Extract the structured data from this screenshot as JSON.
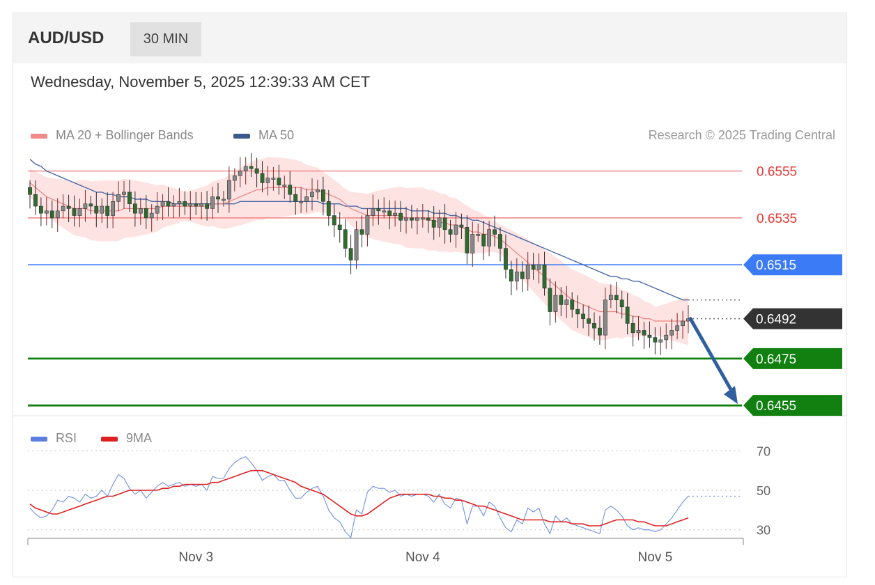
{
  "header": {
    "pair": "AUD/USD",
    "timeframe": "30 MIN",
    "timestamp": "Wednesday, November 5, 2025 12:39:33 AM CET"
  },
  "legend": {
    "ma20_label": "MA 20 + Bollinger Bands",
    "ma50_label": "MA 50",
    "credit": "Research © 2025 Trading Central",
    "rsi_label": "RSI",
    "rsi_ma_label": "9MA"
  },
  "colors": {
    "resistance": "#f08080",
    "resistance_text": "#e53935",
    "pivot": "#3b7bf6",
    "current": "#333333",
    "support": "#118011",
    "ma20": "#e8837e",
    "ma50": "#4a6aa8",
    "band_fill": "#fde0df",
    "candle_up": "#888888",
    "candle_down": "#2e6b2e",
    "arrow": "#2f5f9f",
    "rsi": "#6f8fe0",
    "rsi_ma": "#e02020"
  },
  "chart_data": [
    {
      "type": "candlestick",
      "title": "",
      "ylim": [
        0.645,
        0.6562
      ],
      "levels": [
        {
          "kind": "resistance",
          "value": 0.6555,
          "label": "0.6555"
        },
        {
          "kind": "resistance",
          "value": 0.6535,
          "label": "0.6535"
        },
        {
          "kind": "pivot",
          "value": 0.6515,
          "label": "0.6515"
        },
        {
          "kind": "current",
          "value": 0.6492,
          "label": "0.6492"
        },
        {
          "kind": "support",
          "value": 0.6475,
          "label": "0.6475"
        },
        {
          "kind": "support",
          "value": 0.6455,
          "label": "0.6455"
        }
      ],
      "forecast_arrow": {
        "from": 0.6492,
        "to": 0.6455,
        "direction": "down"
      },
      "close": [
        0.6545,
        0.654,
        0.6537,
        0.6538,
        0.6535,
        0.6538,
        0.654,
        0.6539,
        0.6536,
        0.6539,
        0.6541,
        0.654,
        0.6537,
        0.654,
        0.6536,
        0.6542,
        0.6545,
        0.6546,
        0.6541,
        0.6537,
        0.6539,
        0.6535,
        0.6537,
        0.654,
        0.6542,
        0.654,
        0.6541,
        0.6542,
        0.654,
        0.6541,
        0.654,
        0.6541,
        0.6539,
        0.6544,
        0.6543,
        0.6543,
        0.6551,
        0.6553,
        0.6555,
        0.6557,
        0.6556,
        0.6554,
        0.655,
        0.6552,
        0.6552,
        0.6549,
        0.6549,
        0.6545,
        0.6542,
        0.6542,
        0.6544,
        0.6546,
        0.6547,
        0.6542,
        0.6536,
        0.6532,
        0.653,
        0.6522,
        0.6517,
        0.653,
        0.6528,
        0.6536,
        0.6539,
        0.6538,
        0.6538,
        0.6536,
        0.6537,
        0.6534,
        0.6535,
        0.6534,
        0.6535,
        0.6535,
        0.6534,
        0.6531,
        0.6535,
        0.653,
        0.6528,
        0.6532,
        0.6531,
        0.652,
        0.6528,
        0.6528,
        0.6523,
        0.653,
        0.6528,
        0.6522,
        0.6513,
        0.6508,
        0.6512,
        0.6509,
        0.6515,
        0.6513,
        0.6515,
        0.6505,
        0.6495,
        0.6502,
        0.6498,
        0.65,
        0.6496,
        0.6494,
        0.6492,
        0.649,
        0.6488,
        0.6485,
        0.65,
        0.6502,
        0.65,
        0.6497,
        0.649,
        0.6486,
        0.6487,
        0.6485,
        0.6484,
        0.6482,
        0.6483,
        0.6485,
        0.6487,
        0.6489,
        0.6491,
        0.6492
      ],
      "ma50": [
        0.656,
        0.6558,
        0.6557,
        0.6555,
        0.6554,
        0.6553,
        0.6552,
        0.6551,
        0.655,
        0.6549,
        0.6548,
        0.6547,
        0.6546,
        0.6546,
        0.6545,
        0.6545,
        0.6544,
        0.6544,
        0.6544,
        0.6543,
        0.6543,
        0.6543,
        0.6542,
        0.6542,
        0.6542,
        0.6542,
        0.6541,
        0.6541,
        0.6541,
        0.6541,
        0.6541,
        0.6541,
        0.6541,
        0.6541,
        0.6541,
        0.6541,
        0.6541,
        0.6541,
        0.6542,
        0.6542,
        0.6542,
        0.6542,
        0.6542,
        0.6542,
        0.6542,
        0.6542,
        0.6542,
        0.6542,
        0.6542,
        0.6542,
        0.6542,
        0.6542,
        0.6542,
        0.6541,
        0.6541,
        0.6541,
        0.6541,
        0.654,
        0.654,
        0.654,
        0.6539,
        0.6539,
        0.6539,
        0.6539,
        0.6539,
        0.6539,
        0.6539,
        0.6539,
        0.6539,
        0.6538,
        0.6538,
        0.6538,
        0.6538,
        0.6537,
        0.6537,
        0.6537,
        0.6536,
        0.6536,
        0.6535,
        0.6535,
        0.6534,
        0.6534,
        0.6533,
        0.6532,
        0.6531,
        0.653,
        0.6529,
        0.6528,
        0.6527,
        0.6526,
        0.6525,
        0.6524,
        0.6523,
        0.6522,
        0.6521,
        0.652,
        0.6519,
        0.6518,
        0.6517,
        0.6516,
        0.6515,
        0.6514,
        0.6513,
        0.6512,
        0.6511,
        0.651,
        0.651,
        0.6509,
        0.6509,
        0.6508,
        0.6508,
        0.6507,
        0.6506,
        0.6505,
        0.6504,
        0.6503,
        0.6502,
        0.6501,
        0.65,
        0.65
      ],
      "ma20": [
        0.655,
        0.6548,
        0.6546,
        0.6544,
        0.6543,
        0.6542,
        0.6541,
        0.654,
        0.6539,
        0.6539,
        0.6539,
        0.6538,
        0.6538,
        0.6538,
        0.6538,
        0.6538,
        0.6538,
        0.6539,
        0.6539,
        0.6539,
        0.6539,
        0.6539,
        0.6539,
        0.6539,
        0.654,
        0.654,
        0.654,
        0.654,
        0.654,
        0.654,
        0.654,
        0.654,
        0.654,
        0.6541,
        0.6541,
        0.6541,
        0.6542,
        0.6543,
        0.6544,
        0.6545,
        0.6546,
        0.6547,
        0.6547,
        0.6548,
        0.6548,
        0.6548,
        0.6548,
        0.6548,
        0.6548,
        0.6548,
        0.6547,
        0.6547,
        0.6547,
        0.6546,
        0.6545,
        0.6544,
        0.6543,
        0.6541,
        0.6539,
        0.6538,
        0.6537,
        0.6536,
        0.6536,
        0.6536,
        0.6536,
        0.6536,
        0.6536,
        0.6536,
        0.6535,
        0.6535,
        0.6535,
        0.6535,
        0.6534,
        0.6534,
        0.6533,
        0.6533,
        0.6532,
        0.6532,
        0.6531,
        0.653,
        0.6529,
        0.6529,
        0.6528,
        0.6528,
        0.6527,
        0.6526,
        0.6524,
        0.6522,
        0.652,
        0.6518,
        0.6516,
        0.6514,
        0.6512,
        0.651,
        0.6508,
        0.6506,
        0.6504,
        0.6502,
        0.65,
        0.6499,
        0.6498,
        0.6497,
        0.6496,
        0.6495,
        0.6495,
        0.6495,
        0.6495,
        0.6494,
        0.6494,
        0.6493,
        0.6493,
        0.6492,
        0.6492,
        0.6491,
        0.6491,
        0.6491,
        0.6491,
        0.6491,
        0.6491,
        0.6491
      ]
    },
    {
      "type": "line",
      "title": "",
      "ylim": [
        20,
        80
      ],
      "levels": [
        70,
        50,
        30
      ],
      "series": [
        {
          "name": "RSI",
          "values": [
            41,
            38,
            36,
            37,
            40,
            45,
            44,
            47,
            46,
            44,
            48,
            46,
            47,
            50,
            47,
            53,
            58,
            56,
            51,
            48,
            50,
            46,
            49,
            52,
            54,
            52,
            53,
            54,
            52,
            53,
            52,
            53,
            50,
            57,
            56,
            56,
            61,
            64,
            66,
            67,
            64,
            60,
            55,
            57,
            58,
            55,
            55,
            50,
            46,
            46,
            49,
            51,
            52,
            47,
            40,
            36,
            34,
            29,
            26,
            40,
            38,
            49,
            52,
            51,
            51,
            49,
            50,
            47,
            48,
            47,
            48,
            48,
            47,
            44,
            48,
            43,
            41,
            46,
            45,
            33,
            42,
            42,
            37,
            44,
            42,
            36,
            31,
            29,
            35,
            33,
            41,
            39,
            41,
            33,
            28,
            37,
            34,
            36,
            33,
            32,
            31,
            30,
            29,
            28,
            40,
            42,
            40,
            37,
            32,
            30,
            31,
            30,
            30,
            29,
            30,
            33,
            36,
            40,
            44,
            47
          ]
        },
        {
          "name": "9MA",
          "values": [
            43,
            41,
            40,
            39,
            38,
            38,
            39,
            40,
            41,
            42,
            43,
            44,
            45,
            46,
            47,
            47,
            48,
            49,
            50,
            50,
            50,
            50,
            50,
            50,
            51,
            51,
            52,
            52,
            53,
            53,
            53,
            53,
            53,
            54,
            54,
            55,
            56,
            57,
            58,
            59,
            60,
            60,
            60,
            59,
            58,
            57,
            56,
            55,
            54,
            52,
            51,
            50,
            49,
            48,
            46,
            44,
            42,
            40,
            38,
            37,
            37,
            38,
            40,
            42,
            44,
            46,
            47,
            48,
            48,
            48,
            48,
            48,
            48,
            47,
            47,
            46,
            46,
            45,
            45,
            44,
            43,
            42,
            42,
            41,
            40,
            39,
            38,
            37,
            36,
            35,
            35,
            35,
            35,
            35,
            34,
            34,
            34,
            34,
            33,
            33,
            33,
            32,
            32,
            32,
            33,
            34,
            35,
            35,
            35,
            35,
            34,
            34,
            33,
            32,
            32,
            32,
            33,
            34,
            35,
            36
          ]
        }
      ]
    }
  ],
  "xaxis": {
    "ticks": [
      {
        "label": "Nov 3",
        "index": 30
      },
      {
        "label": "Nov 4",
        "index": 71
      },
      {
        "label": "Nov 5",
        "index": 113
      }
    ]
  }
}
